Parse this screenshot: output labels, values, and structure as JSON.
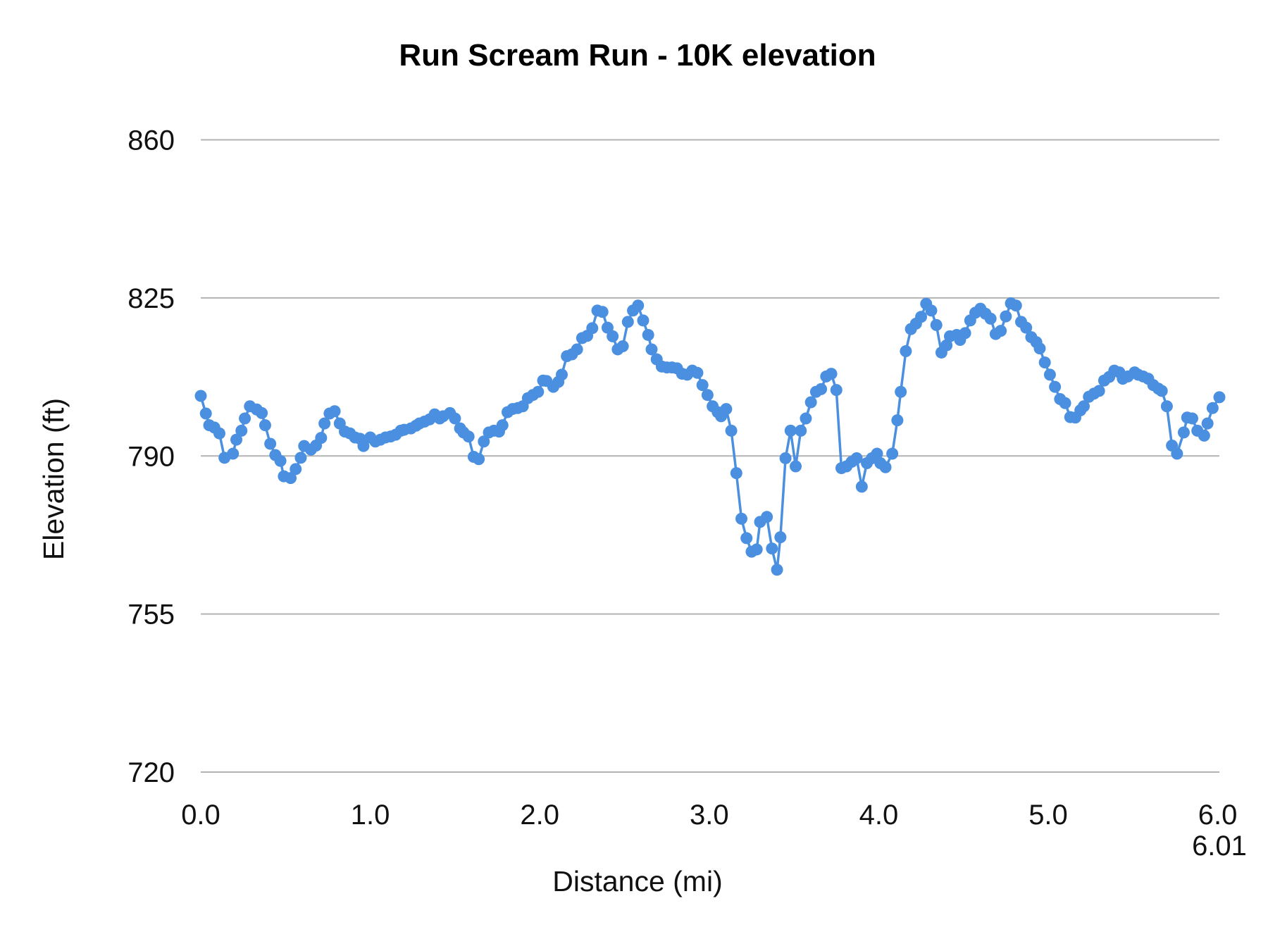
{
  "chart_data": {
    "type": "line",
    "title": "Run Scream Run - 10K elevation",
    "xlabel": "Distance (mi)",
    "ylabel": "Elevation (ft)",
    "xlim": [
      0,
      6.01
    ],
    "ylim": [
      720,
      860
    ],
    "x_ticks": [
      "0.0",
      "1.0",
      "2.0",
      "3.0",
      "4.0",
      "5.0",
      "6.0",
      "6.01"
    ],
    "x_tick_values": [
      0,
      1,
      2,
      3,
      4,
      5,
      6,
      6.01
    ],
    "y_ticks": [
      "720",
      "755",
      "790",
      "825",
      "860"
    ],
    "y_tick_values": [
      720,
      755,
      790,
      825,
      860
    ],
    "grid": "horizontal",
    "legend": "none",
    "markers": true,
    "color": "#4a8fe0",
    "x": [
      0.0,
      0.03,
      0.05,
      0.08,
      0.11,
      0.14,
      0.19,
      0.21,
      0.24,
      0.26,
      0.29,
      0.33,
      0.36,
      0.38,
      0.41,
      0.44,
      0.47,
      0.49,
      0.53,
      0.56,
      0.59,
      0.61,
      0.65,
      0.68,
      0.71,
      0.73,
      0.76,
      0.79,
      0.82,
      0.85,
      0.88,
      0.91,
      0.94,
      0.96,
      1.0,
      1.03,
      1.06,
      1.09,
      1.12,
      1.15,
      1.18,
      1.2,
      1.24,
      1.27,
      1.29,
      1.32,
      1.35,
      1.38,
      1.41,
      1.43,
      1.47,
      1.5,
      1.53,
      1.55,
      1.58,
      1.61,
      1.64,
      1.67,
      1.7,
      1.73,
      1.76,
      1.78,
      1.81,
      1.84,
      1.87,
      1.9,
      1.93,
      1.96,
      1.99,
      2.02,
      2.04,
      2.08,
      2.11,
      2.13,
      2.16,
      2.19,
      2.22,
      2.25,
      2.28,
      2.31,
      2.34,
      2.37,
      2.4,
      2.43,
      2.46,
      2.49,
      2.52,
      2.55,
      2.58,
      2.61,
      2.64,
      2.66,
      2.69,
      2.72,
      2.75,
      2.78,
      2.81,
      2.84,
      2.87,
      2.9,
      2.93,
      2.96,
      2.99,
      3.02,
      3.05,
      3.07,
      3.1,
      3.13,
      3.16,
      3.19,
      3.22,
      3.25,
      3.28,
      3.3,
      3.34,
      3.37,
      3.4,
      3.42,
      3.45,
      3.48,
      3.51,
      3.54,
      3.57,
      3.6,
      3.63,
      3.66,
      3.69,
      3.72,
      3.75,
      3.78,
      3.81,
      3.84,
      3.87,
      3.9,
      3.93,
      3.96,
      3.99,
      4.01,
      4.04,
      4.08,
      4.11,
      4.13,
      4.16,
      4.19,
      4.22,
      4.25,
      4.28,
      4.31,
      4.34,
      4.37,
      4.4,
      4.42,
      4.46,
      4.48,
      4.51,
      4.54,
      4.57,
      4.6,
      4.63,
      4.66,
      4.69,
      4.72,
      4.75,
      4.78,
      4.81,
      4.84,
      4.87,
      4.9,
      4.93,
      4.95,
      4.98,
      5.01,
      5.04,
      5.07,
      5.1,
      5.13,
      5.16,
      5.19,
      5.21,
      5.24,
      5.27,
      5.3,
      5.33,
      5.36,
      5.39,
      5.42,
      5.44,
      5.47,
      5.51,
      5.53,
      5.56,
      5.59,
      5.62,
      5.65,
      5.67,
      5.7,
      5.73,
      5.76,
      5.8,
      5.82,
      5.85,
      5.88,
      5.92,
      5.94,
      5.97,
      6.01
    ],
    "y": [
      803.3,
      799.4,
      796.8,
      796.3,
      795.0,
      789.6,
      790.5,
      793.6,
      795.6,
      798.3,
      801.0,
      800.3,
      799.5,
      796.8,
      792.7,
      790.2,
      788.9,
      785.5,
      785.1,
      787.1,
      789.6,
      792.2,
      791.4,
      792.3,
      794.0,
      797.2,
      799.4,
      799.9,
      797.2,
      795.4,
      795.0,
      794.1,
      793.8,
      792.2,
      794.1,
      793.2,
      793.6,
      794.1,
      794.3,
      794.7,
      795.6,
      795.8,
      796.1,
      796.7,
      797.2,
      797.6,
      798.1,
      799.2,
      798.3,
      798.8,
      799.5,
      798.3,
      796.1,
      795.2,
      794.3,
      789.8,
      789.3,
      793.2,
      795.2,
      795.6,
      795.4,
      796.8,
      799.7,
      800.4,
      800.6,
      801.0,
      802.8,
      803.5,
      804.2,
      806.7,
      806.6,
      805.3,
      806.4,
      808.0,
      812.1,
      812.5,
      813.6,
      816.1,
      816.6,
      818.3,
      822.2,
      821.9,
      818.4,
      816.5,
      813.6,
      814.3,
      819.7,
      822.2,
      823.3,
      820.0,
      816.8,
      813.6,
      811.4,
      809.8,
      809.6,
      809.6,
      809.4,
      808.2,
      808.0,
      808.9,
      808.4,
      805.7,
      803.5,
      801.0,
      799.7,
      798.8,
      800.4,
      795.6,
      786.2,
      776.1,
      771.8,
      768.8,
      769.3,
      775.4,
      776.5,
      769.5,
      764.8,
      772.0,
      789.5,
      795.6,
      787.7,
      795.6,
      798.3,
      801.9,
      804.2,
      804.8,
      807.6,
      808.2,
      804.6,
      787.3,
      787.7,
      788.7,
      789.5,
      783.2,
      788.4,
      789.5,
      790.5,
      788.4,
      787.5,
      790.5,
      797.9,
      804.2,
      813.2,
      818.1,
      819.3,
      820.8,
      823.7,
      822.2,
      819.0,
      812.9,
      814.5,
      816.5,
      816.8,
      815.7,
      817.2,
      820.0,
      821.7,
      822.6,
      821.5,
      820.4,
      817.0,
      817.7,
      820.9,
      823.8,
      823.3,
      819.7,
      818.4,
      816.3,
      815.2,
      813.8,
      810.7,
      808.0,
      805.3,
      802.6,
      801.7,
      798.6,
      798.5,
      800.1,
      801.0,
      803.1,
      803.8,
      804.4,
      806.7,
      807.5,
      808.9,
      808.5,
      807.1,
      807.6,
      808.5,
      808.0,
      807.6,
      807.1,
      805.7,
      804.9,
      804.4,
      801.0,
      792.3,
      790.5,
      795.2,
      798.5,
      798.3,
      795.6,
      794.5,
      797.2,
      800.6,
      803.0
    ]
  }
}
